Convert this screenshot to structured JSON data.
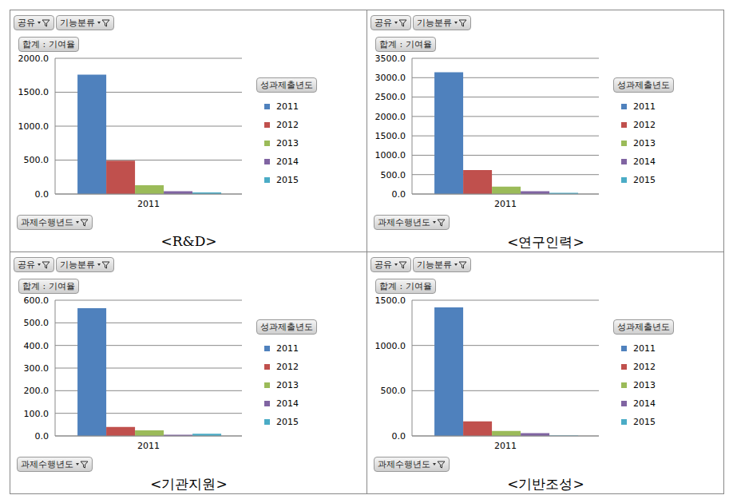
{
  "chart_data": [
    {
      "type": "bar",
      "title": "<R&D>",
      "annotations": [
        "공유",
        "기능분류"
      ],
      "y_label": "합계 : 기여율",
      "x_label": "과제수행년드",
      "legend_title": "성과제출년도",
      "legend": "right",
      "grid": true,
      "categories": [
        "2011"
      ],
      "series": [
        {
          "name": "2011",
          "color": "#4f81bd",
          "values": [
            1760
          ]
        },
        {
          "name": "2012",
          "color": "#c0504d",
          "values": [
            490
          ]
        },
        {
          "name": "2013",
          "color": "#9bbb59",
          "values": [
            130
          ]
        },
        {
          "name": "2014",
          "color": "#8064a2",
          "values": [
            40
          ]
        },
        {
          "name": "2015",
          "color": "#4bacc6",
          "values": [
            25
          ]
        }
      ],
      "ylim": [
        0,
        2000
      ],
      "yticks": [
        {
          "value": 0,
          "label": "0.0"
        },
        {
          "value": 500,
          "label": "500.0"
        },
        {
          "value": 1000,
          "label": "1000.0"
        },
        {
          "value": 1500,
          "label": "1500.0"
        },
        {
          "value": 2000,
          "label": "2000.0"
        }
      ]
    },
    {
      "type": "bar",
      "title": "<연구인력>",
      "annotations": [
        "공유",
        "기능분류"
      ],
      "y_label": "합계 : 기여율",
      "x_label": "과제수행년도",
      "legend_title": "성과제출년도",
      "legend": "right",
      "grid": true,
      "categories": [
        "2011"
      ],
      "series": [
        {
          "name": "2011",
          "color": "#4f81bd",
          "values": [
            3140
          ]
        },
        {
          "name": "2012",
          "color": "#c0504d",
          "values": [
            620
          ]
        },
        {
          "name": "2013",
          "color": "#9bbb59",
          "values": [
            190
          ]
        },
        {
          "name": "2014",
          "color": "#8064a2",
          "values": [
            70
          ]
        },
        {
          "name": "2015",
          "color": "#4bacc6",
          "values": [
            30
          ]
        }
      ],
      "ylim": [
        0,
        3500
      ],
      "yticks": [
        {
          "value": 0,
          "label": "0.0"
        },
        {
          "value": 500,
          "label": "500.0"
        },
        {
          "value": 1000,
          "label": "1000.0"
        },
        {
          "value": 1500,
          "label": "1500.0"
        },
        {
          "value": 2000,
          "label": "2000.0"
        },
        {
          "value": 2500,
          "label": "2500.0"
        },
        {
          "value": 3000,
          "label": "3000.0"
        },
        {
          "value": 3500,
          "label": "3500.0"
        }
      ]
    },
    {
      "type": "bar",
      "title": "<기관지원>",
      "annotations": [
        "공유",
        "기능분류"
      ],
      "y_label": "합계 : 기여율",
      "x_label": "과제수행년도",
      "legend_title": "성과제출년도",
      "legend": "right",
      "grid": true,
      "categories": [
        "2011"
      ],
      "series": [
        {
          "name": "2011",
          "color": "#4f81bd",
          "values": [
            565
          ]
        },
        {
          "name": "2012",
          "color": "#c0504d",
          "values": [
            40
          ]
        },
        {
          "name": "2013",
          "color": "#9bbb59",
          "values": [
            25
          ]
        },
        {
          "name": "2014",
          "color": "#8064a2",
          "values": [
            5
          ]
        },
        {
          "name": "2015",
          "color": "#4bacc6",
          "values": [
            10
          ]
        }
      ],
      "ylim": [
        0,
        600
      ],
      "yticks": [
        {
          "value": 0,
          "label": "0.0"
        },
        {
          "value": 100,
          "label": "100.0"
        },
        {
          "value": 200,
          "label": "200.0"
        },
        {
          "value": 300,
          "label": "300.0"
        },
        {
          "value": 400,
          "label": "400.0"
        },
        {
          "value": 500,
          "label": "500.0"
        },
        {
          "value": 600,
          "label": "600.0"
        }
      ]
    },
    {
      "type": "bar",
      "title": "<기반조성>",
      "annotations": [
        "공유",
        "기능분류"
      ],
      "y_label": "합계 : 기여율",
      "x_label": "과제수행년도",
      "legend_title": "성과제출년도",
      "legend": "right",
      "grid": true,
      "categories": [
        "2011"
      ],
      "series": [
        {
          "name": "2011",
          "color": "#4f81bd",
          "values": [
            1420
          ]
        },
        {
          "name": "2012",
          "color": "#c0504d",
          "values": [
            160
          ]
        },
        {
          "name": "2013",
          "color": "#9bbb59",
          "values": [
            55
          ]
        },
        {
          "name": "2014",
          "color": "#8064a2",
          "values": [
            30
          ]
        },
        {
          "name": "2015",
          "color": "#4bacc6",
          "values": [
            5
          ]
        }
      ],
      "ylim": [
        0,
        1500
      ],
      "yticks": [
        {
          "value": 0,
          "label": "0.0"
        },
        {
          "value": 500,
          "label": "500.0"
        },
        {
          "value": 1000,
          "label": "1000.0"
        },
        {
          "value": 1500,
          "label": "1500.0"
        }
      ]
    }
  ]
}
